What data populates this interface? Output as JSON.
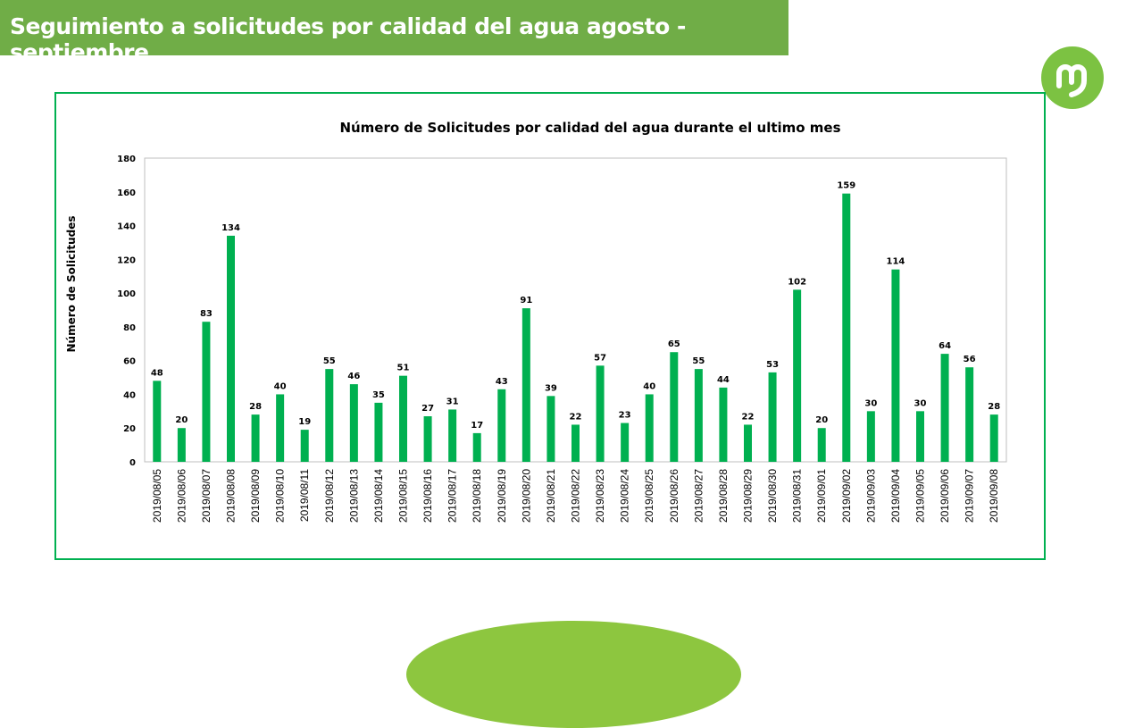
{
  "slide_title": "Seguimiento a solicitudes por calidad del agua agosto - septiembre",
  "colors": {
    "banner": "#70ad47",
    "frame": "#00b050",
    "bar": "#00b050",
    "logo": "#7cc242"
  },
  "chart_data": {
    "type": "bar",
    "title": "Número de Solicitudes por calidad del agua durante el ultimo mes",
    "xlabel": "",
    "ylabel": "Número de Solicitudes",
    "ylim": [
      0,
      180
    ],
    "yticks": [
      0,
      20,
      40,
      60,
      80,
      100,
      120,
      140,
      160,
      180
    ],
    "grid": false,
    "legend": "none",
    "categories": [
      "2019/08/05",
      "2019/08/06",
      "2019/08/07",
      "2019/08/08",
      "2019/08/09",
      "2019/08/10",
      "2019/08/11",
      "2019/08/12",
      "2019/08/13",
      "2019/08/14",
      "2019/08/15",
      "2019/08/16",
      "2019/08/17",
      "2019/08/18",
      "2019/08/19",
      "2019/08/20",
      "2019/08/21",
      "2019/08/22",
      "2019/08/23",
      "2019/08/24",
      "2019/08/25",
      "2019/08/26",
      "2019/08/27",
      "2019/08/28",
      "2019/08/29",
      "2019/08/30",
      "2019/08/31",
      "2019/09/01",
      "2019/09/02",
      "2019/09/03",
      "2019/09/04",
      "2019/09/05",
      "2019/09/06",
      "2019/09/07",
      "2019/09/08"
    ],
    "values": [
      48,
      20,
      83,
      134,
      28,
      40,
      19,
      55,
      46,
      35,
      51,
      27,
      31,
      17,
      43,
      91,
      39,
      22,
      57,
      23,
      40,
      65,
      55,
      44,
      22,
      53,
      102,
      20,
      159,
      30,
      114,
      30,
      64,
      56,
      28
    ]
  }
}
